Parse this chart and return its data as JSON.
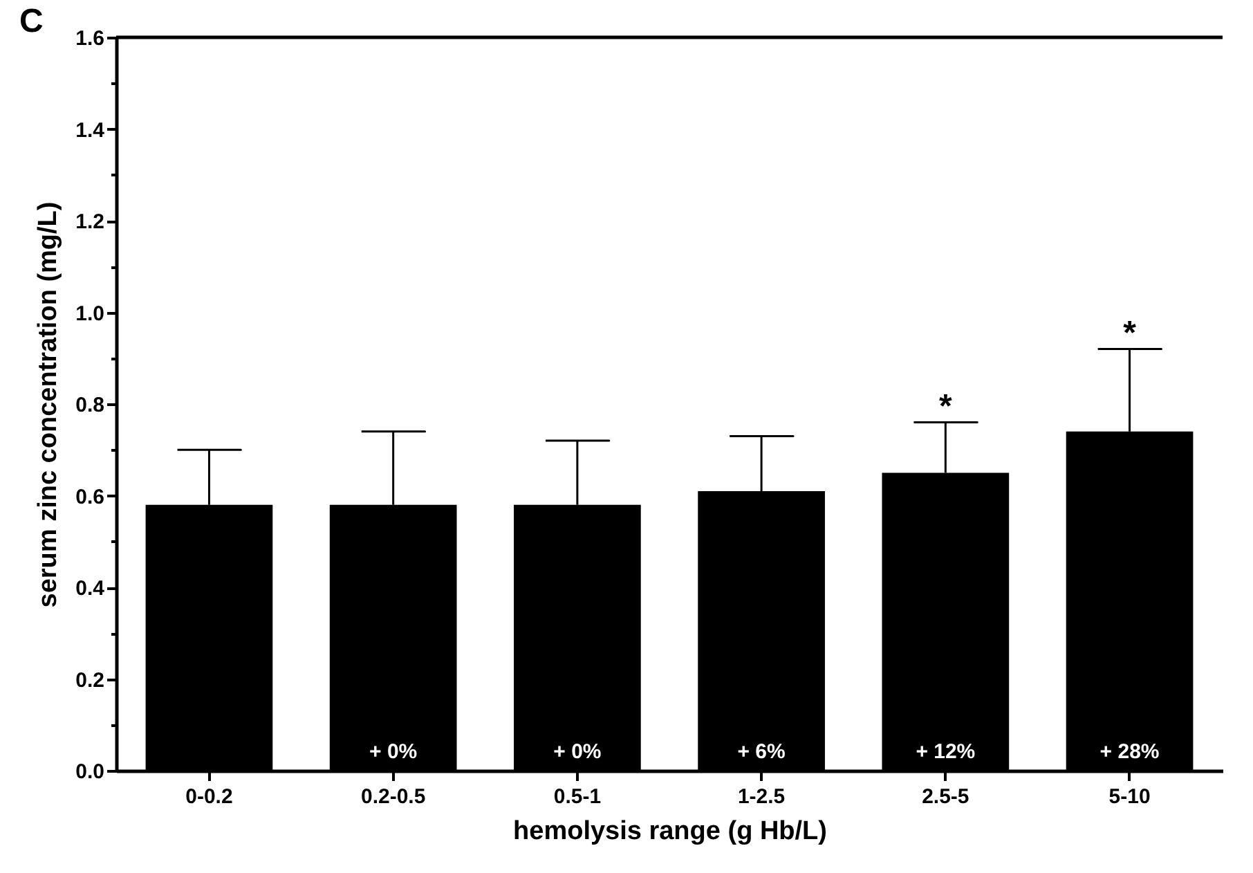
{
  "chart_data": {
    "type": "bar",
    "xlabel": "hemolysis range (g Hb/L)",
    "ylabel": "serum zinc concentration (mg/L)",
    "categories": [
      "0-0.2",
      "0.2-0.5",
      "0.5-1",
      "1-2.5",
      "2.5-5",
      "5-10"
    ],
    "values": [
      0.58,
      0.58,
      0.58,
      0.61,
      0.65,
      0.74
    ],
    "errors": [
      [
        0.58,
        0.7
      ],
      [
        0.58,
        0.74
      ],
      [
        0.58,
        0.72
      ],
      [
        0.61,
        0.73
      ],
      [
        0.65,
        0.76
      ],
      [
        0.74,
        0.92
      ]
    ],
    "color": "#000000",
    "grid": false,
    "ylim": [
      0,
      1.6
    ],
    "yticks": [
      {
        "value": 0,
        "label": "0.0"
      },
      {
        "value": 0.1,
        "label": null
      },
      {
        "value": 0.2,
        "label": "0.2"
      },
      {
        "value": 0.3,
        "label": null
      },
      {
        "value": 0.4,
        "label": "0.4"
      },
      {
        "value": 0.5,
        "label": null
      },
      {
        "value": 0.6,
        "label": "0.6"
      },
      {
        "value": 0.7,
        "label": null
      },
      {
        "value": 0.8,
        "label": "0.8"
      },
      {
        "value": 0.9,
        "label": null
      },
      {
        "value": 1,
        "label": "1.0"
      },
      {
        "value": 1.1,
        "label": null
      },
      {
        "value": 1.2,
        "label": "1.2"
      },
      {
        "value": 1.3,
        "label": null
      },
      {
        "value": 1.4,
        "label": "1.4"
      },
      {
        "value": 1.5,
        "label": null
      },
      {
        "value": 1.6,
        "label": "1.6"
      }
    ],
    "annotations": [
      "C",
      {
        "text": "*",
        "x": "2.5-5",
        "y": 0.76
      },
      {
        "text": "*",
        "x": "5-10",
        "y": 0.92
      },
      {
        "text": "+ 0%",
        "x": "0.2-0.5",
        "y": 0
      },
      {
        "text": "+ 0%",
        "x": "0.5-1",
        "y": 0
      },
      {
        "text": "+ 6%",
        "x": "1-2.5",
        "y": 0
      },
      {
        "text": "+ 12%",
        "x": "2.5-5",
        "y": 0
      },
      {
        "text": "+ 28%",
        "x": "5-10",
        "y": 0
      }
    ]
  }
}
